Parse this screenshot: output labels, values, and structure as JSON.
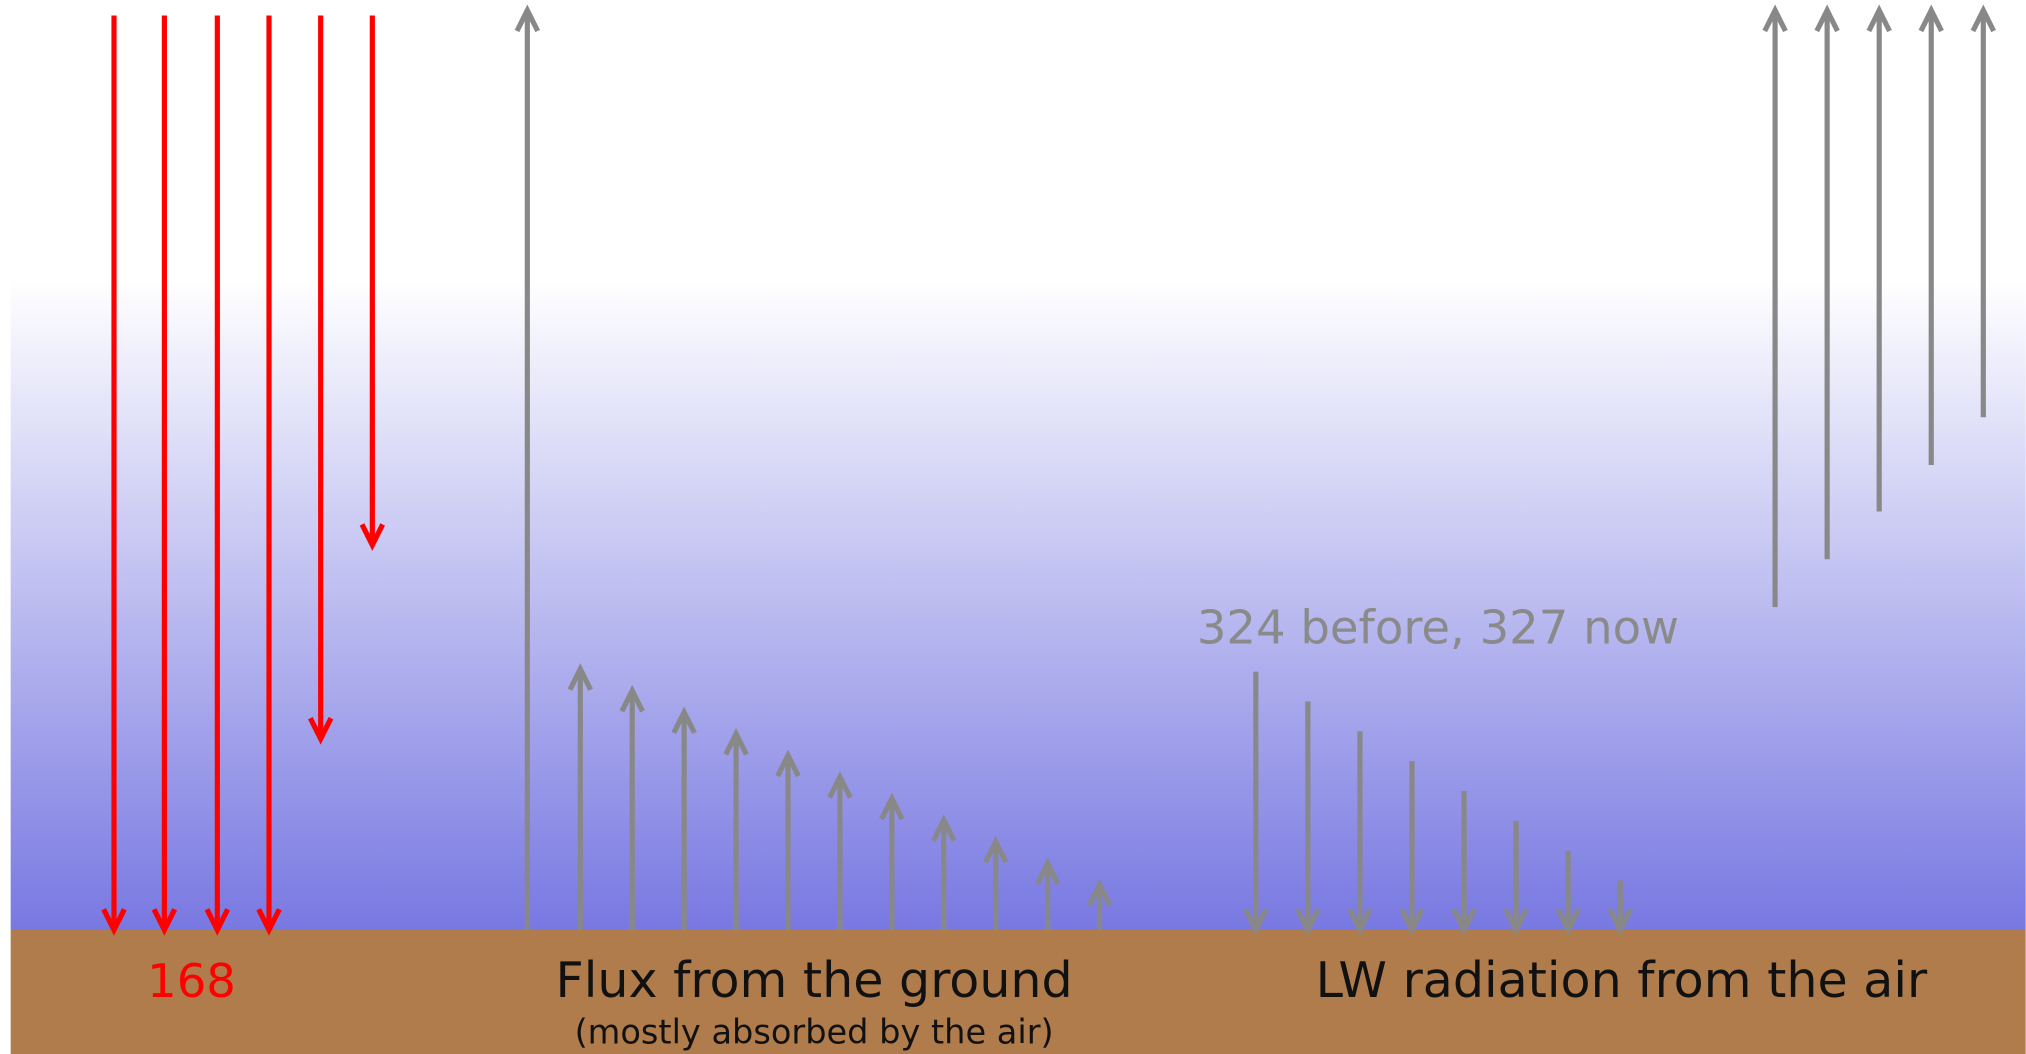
{
  "ground_labels": {
    "solar": "168",
    "flux_title": "Flux from the ground",
    "flux_note": "(mostly absorbed by the air)",
    "lw_title": "LW radiation from the air"
  },
  "lw_annotation": "324 before, 327 now"
}
